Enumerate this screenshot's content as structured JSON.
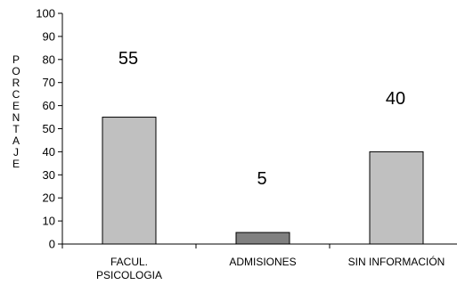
{
  "chart_data": {
    "type": "bar",
    "categories": [
      [
        "FACUL.",
        "PSICOLOGIA"
      ],
      [
        "ADMISIONES"
      ],
      [
        "SIN INFORMACIÓN"
      ]
    ],
    "values": [
      55,
      5,
      40
    ],
    "data_labels": [
      "55",
      "5",
      "40"
    ],
    "bar_colors": [
      "#c0c0c0",
      "#808080",
      "#c0c0c0"
    ],
    "ylabel": "PORCENTAJE",
    "ylim": [
      0,
      100
    ],
    "yticks": [
      0,
      10,
      20,
      30,
      40,
      50,
      60,
      70,
      80,
      90,
      100
    ],
    "grid": false,
    "legend": "none"
  }
}
